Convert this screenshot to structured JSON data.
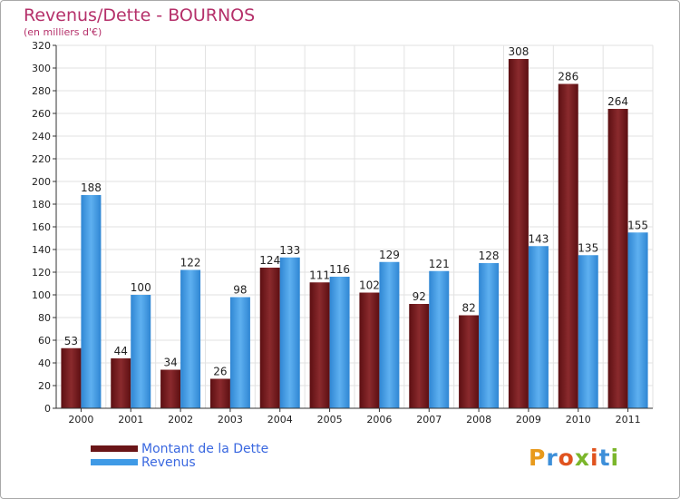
{
  "header": {
    "title": "Revenus/Dette - BOURNOS",
    "subtitle": "(en milliers d'€)"
  },
  "logo": {
    "text": "Proxiti",
    "letter_colors": [
      "#e89a1c",
      "#3d8fd9",
      "#e0531f",
      "#7bb62b",
      "#e0531f",
      "#3d8fd9",
      "#7bb62b"
    ]
  },
  "chart_data": {
    "type": "bar",
    "title": "Revenus/Dette - BOURNOS",
    "ylabel": "(en milliers d'€)",
    "xlabel": "",
    "ylim": [
      0,
      320
    ],
    "ytick_step": 20,
    "grid": true,
    "legend_position": "bottom-left",
    "categories": [
      "2000",
      "2001",
      "2002",
      "2003",
      "2004",
      "2005",
      "2006",
      "2007",
      "2008",
      "2009",
      "2010",
      "2011"
    ],
    "series": [
      {
        "name": "Montant de la Dette",
        "color": "#7a1f22",
        "values": [
          53,
          44,
          34,
          26,
          124,
          111,
          102,
          92,
          82,
          308,
          286,
          264
        ]
      },
      {
        "name": "Revenus",
        "color": "#3f9ae6",
        "values": [
          188,
          100,
          122,
          98,
          133,
          116,
          129,
          121,
          128,
          143,
          135,
          155
        ]
      }
    ]
  }
}
